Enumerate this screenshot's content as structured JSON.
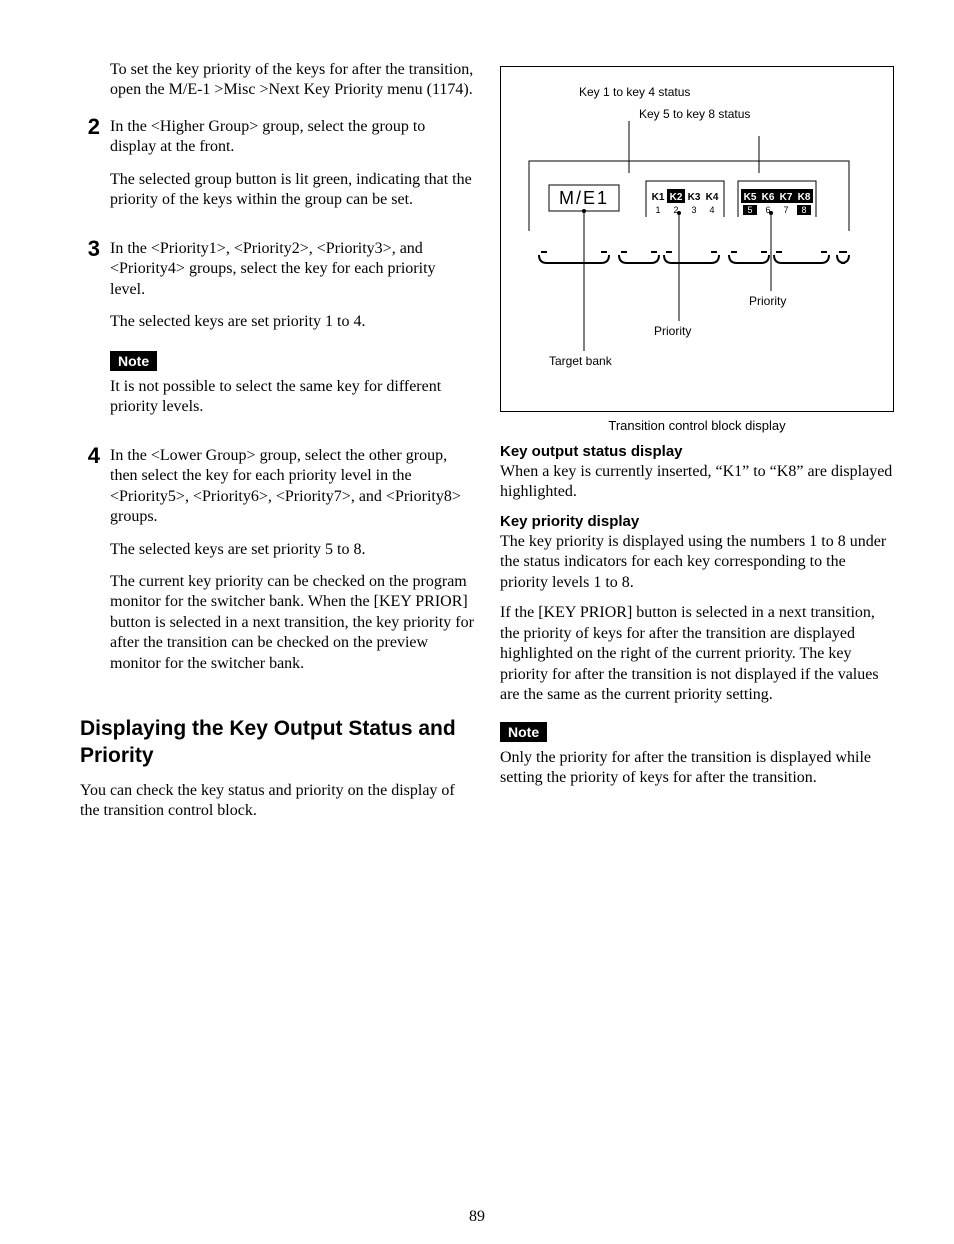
{
  "left": {
    "intro": "To set the key priority of the keys for after the transition, open the M/E-1 >Misc >Next Key Priority menu (1174).",
    "steps": [
      {
        "num": "2",
        "paras": [
          "In the <Higher Group> group, select the group to display at the front.",
          "The selected group button is lit green, indicating that the priority of the keys within the group can be set."
        ]
      },
      {
        "num": "3",
        "paras": [
          "In the <Priority1>, <Priority2>, <Priority3>, and <Priority4> groups, select the key for each priority level.",
          "The selected keys are set priority 1 to 4."
        ],
        "note_label": "Note",
        "note_body": "It is not possible to select the same key for different priority levels."
      },
      {
        "num": "4",
        "paras": [
          "In the <Lower Group> group, select the other group, then select the key for each priority level in the <Priority5>, <Priority6>, <Priority7>, and <Priority8> groups.",
          "The selected keys are set priority 5 to 8.",
          "The current key priority can be checked on the program monitor for the switcher bank.\nWhen the [KEY PRIOR] button is selected in a next transition, the key priority for after the transition can be checked on the preview monitor for the switcher bank."
        ]
      }
    ],
    "h2": "Displaying the Key Output Status and Priority",
    "after_h2": "You can check the key status and priority on the display of the transition control block."
  },
  "right": {
    "fig": {
      "label_top1": "Key 1 to key 4 status",
      "label_top2": "Key 5 to key 8 status",
      "me": "M/E1",
      "keys_a": [
        "K1",
        "K2",
        "K3",
        "K4"
      ],
      "keys_b": [
        "K5",
        "K6",
        "K7",
        "K8"
      ],
      "prio_a": [
        "1",
        "2",
        "3",
        "4"
      ],
      "prio_b": [
        "5",
        "6",
        "7",
        "8"
      ],
      "hl_a": [
        false,
        true,
        false,
        false
      ],
      "hl_b": [
        true,
        true,
        true,
        true
      ],
      "phl_b": [
        true,
        false,
        false,
        true
      ],
      "ann_priority": "Priority",
      "ann_target": "Target bank",
      "caption": "Transition control block display"
    },
    "h4a": "Key output status display",
    "p_a": "When a key is currently inserted, “K1” to “K8” are displayed highlighted.",
    "h4b": "Key priority display",
    "p_b1": "The key priority is displayed using the numbers 1 to 8 under the status indicators for each key corresponding to the priority levels 1 to 8.",
    "p_b2": "If the [KEY PRIOR] button is selected in a next transition, the priority of keys for after the transition are displayed highlighted on the right of the current priority. The key priority for after the transition is not displayed if the values are the same as the current priority setting.",
    "note_label": "Note",
    "note_body": "Only the priority for after the transition is displayed while setting the priority of keys for after the transition."
  },
  "page_number": "89"
}
